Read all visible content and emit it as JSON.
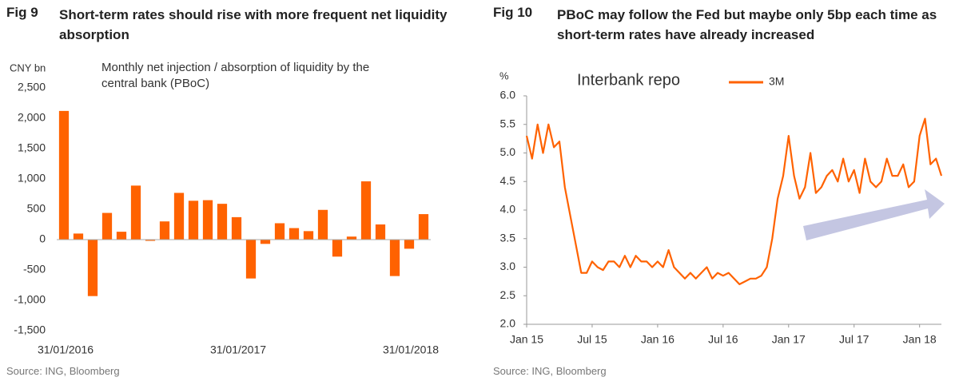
{
  "chart_data": [
    {
      "type": "bar",
      "figure_label": "Fig 9",
      "title": "Short-term rates should rise with more frequent net liquidity absorption",
      "y_unit": "CNY bn",
      "annotation": "Monthly net injection / absorption of liquidity by the central bank (PBoC)",
      "source": "Source: ING, Bloomberg",
      "categories": [
        "31/01/2016",
        null,
        null,
        null,
        null,
        null,
        null,
        null,
        null,
        null,
        null,
        null,
        "31/01/2017",
        null,
        null,
        null,
        null,
        null,
        null,
        null,
        null,
        null,
        null,
        null,
        "31/01/2018",
        null
      ],
      "values": [
        2120,
        100,
        -930,
        440,
        130,
        890,
        -20,
        300,
        770,
        640,
        650,
        590,
        370,
        -640,
        -70,
        270,
        190,
        140,
        490,
        -280,
        50,
        960,
        250,
        -600,
        -150,
        420
      ],
      "color": "#ff6200",
      "ylim": [
        -1500,
        2500
      ],
      "yticks": [
        {
          "value": 2500,
          "label": "2,500"
        },
        {
          "value": 2000,
          "label": "2,000"
        },
        {
          "value": 1500,
          "label": "1,500"
        },
        {
          "value": 1000,
          "label": "1,000"
        },
        500,
        0,
        -500,
        {
          "value": -1000,
          "label": "-1,000"
        },
        {
          "value": -1500,
          "label": "-1,500"
        }
      ],
      "grid": false
    },
    {
      "type": "line",
      "figure_label": "Fig 10",
      "title": "PBoC may follow the Fed but maybe only 5bp each time as short-term rates have already increased",
      "y_unit": "%",
      "annotation": "Interbank repo",
      "source": "Source: ING, Bloomberg",
      "categories": [
        "Jan 15",
        null,
        null,
        null,
        null,
        null,
        null,
        null,
        null,
        null,
        null,
        null,
        "Jul 15",
        null,
        null,
        null,
        null,
        null,
        null,
        null,
        null,
        null,
        null,
        null,
        "Jan 16",
        null,
        null,
        null,
        null,
        null,
        null,
        null,
        null,
        null,
        null,
        null,
        "Jul 16",
        null,
        null,
        null,
        null,
        null,
        null,
        null,
        null,
        null,
        null,
        null,
        "Jan 17",
        null,
        null,
        null,
        null,
        null,
        null,
        null,
        null,
        null,
        null,
        null,
        "Jul 17",
        null,
        null,
        null,
        null,
        null,
        null,
        null,
        null,
        null,
        null,
        null,
        "Jan 18",
        null,
        null,
        null,
        null
      ],
      "series": [
        {
          "name": "3M",
          "color": "#ff6200",
          "values": [
            5.3,
            4.9,
            5.5,
            5.0,
            5.5,
            5.1,
            5.2,
            4.4,
            3.9,
            3.4,
            2.9,
            2.9,
            3.1,
            3.0,
            2.95,
            3.1,
            3.1,
            3.0,
            3.2,
            3.0,
            3.2,
            3.1,
            3.1,
            3.0,
            3.1,
            3.0,
            3.3,
            3.0,
            2.9,
            2.8,
            2.9,
            2.8,
            2.9,
            3.0,
            2.8,
            2.9,
            2.85,
            2.9,
            2.8,
            2.7,
            2.75,
            2.8,
            2.8,
            2.85,
            3.0,
            3.5,
            4.2,
            4.6,
            5.3,
            4.6,
            4.2,
            4.4,
            5.0,
            4.3,
            4.4,
            4.6,
            4.7,
            4.5,
            4.9,
            4.5,
            4.7,
            4.3,
            4.9,
            4.5,
            4.4,
            4.5,
            4.9,
            4.6,
            4.6,
            4.8,
            4.4,
            4.5,
            5.3,
            5.6,
            4.8,
            4.9,
            4.6
          ]
        }
      ],
      "ylim": [
        2,
        6
      ],
      "yticks": [
        {
          "value": 2,
          "label": "2.0"
        },
        2.5,
        {
          "value": 3,
          "label": "3.0"
        },
        3.5,
        {
          "value": 4,
          "label": "4.0"
        },
        4.5,
        {
          "value": 5,
          "label": "5.0"
        },
        5.5,
        {
          "value": 6,
          "label": "6.0"
        }
      ],
      "grid": false
    }
  ]
}
